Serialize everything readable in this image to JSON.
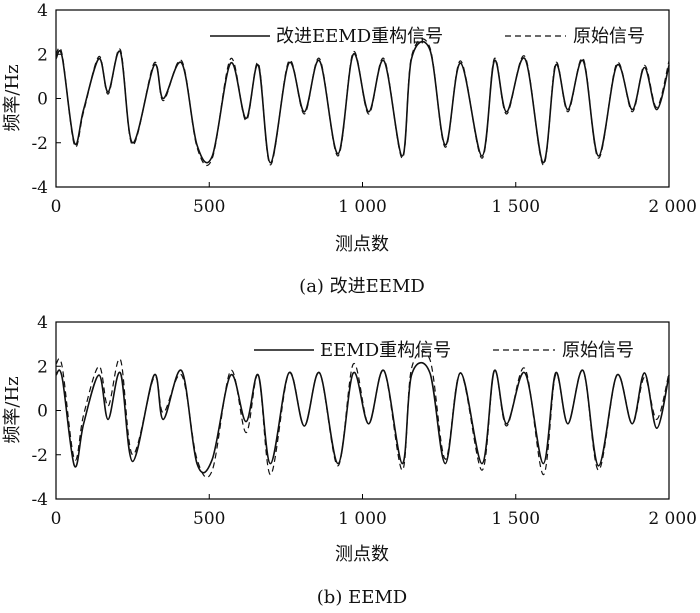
{
  "chart_data": [
    {
      "type": "line",
      "caption": "(a) 改进EEMD",
      "xlabel": "测点数",
      "ylabel": "频率/Hz",
      "xlim": [
        0,
        2000
      ],
      "ylim": [
        -4,
        4
      ],
      "x_ticks": [
        0,
        500,
        1000,
        1500,
        2000
      ],
      "x_tick_labels": [
        "0",
        "500",
        "1 000",
        "1 500",
        "2 000"
      ],
      "y_ticks": [
        4,
        2,
        0,
        -2,
        -4
      ],
      "y_tick_labels": [
        "4",
        "2",
        "0",
        "-2",
        "-4"
      ],
      "legend_position": "top-right",
      "grid": false,
      "series": [
        {
          "name": "改进EEMD重构信号",
          "style": "solid",
          "x": [
            0,
            20,
            60,
            90,
            140,
            170,
            210,
            250,
            320,
            350,
            410,
            460,
            510,
            570,
            620,
            660,
            700,
            760,
            810,
            860,
            920,
            970,
            1020,
            1070,
            1130,
            1160,
            1220,
            1270,
            1320,
            1390,
            1430,
            1470,
            1530,
            1590,
            1630,
            1670,
            1720,
            1770,
            1830,
            1880,
            1920,
            1960,
            2000
          ],
          "y": [
            1.8,
            1.9,
            -2.0,
            -0.5,
            1.8,
            0.3,
            2.1,
            -2.0,
            1.5,
            0.0,
            1.6,
            -2.1,
            -2.6,
            1.6,
            -0.9,
            1.5,
            -2.9,
            1.6,
            -0.6,
            1.7,
            -2.5,
            2.0,
            -0.6,
            1.7,
            -2.6,
            1.8,
            2.2,
            -2.1,
            1.6,
            -2.6,
            1.7,
            -0.6,
            1.8,
            -2.9,
            1.5,
            -0.5,
            1.7,
            -2.6,
            1.5,
            -0.5,
            1.4,
            -0.5,
            1.5
          ]
        },
        {
          "name": "原始信号",
          "style": "dashed",
          "x": [
            0,
            20,
            60,
            90,
            140,
            170,
            210,
            250,
            320,
            350,
            410,
            460,
            510,
            570,
            620,
            660,
            700,
            760,
            810,
            860,
            920,
            970,
            1020,
            1070,
            1130,
            1160,
            1220,
            1270,
            1320,
            1390,
            1430,
            1470,
            1530,
            1590,
            1630,
            1670,
            1720,
            1770,
            1830,
            1880,
            1920,
            1960,
            2000
          ],
          "y": [
            2.0,
            2.0,
            -2.1,
            -0.6,
            1.9,
            0.2,
            2.2,
            -2.1,
            1.6,
            -0.1,
            1.7,
            -2.2,
            -2.7,
            1.8,
            -1.0,
            1.6,
            -3.0,
            1.7,
            -0.7,
            1.8,
            -2.6,
            2.1,
            -0.7,
            1.8,
            -2.7,
            1.9,
            2.3,
            -2.2,
            1.7,
            -2.7,
            1.8,
            -0.7,
            1.9,
            -3.0,
            1.6,
            -0.6,
            1.8,
            -2.7,
            1.6,
            -0.6,
            1.5,
            -0.4,
            1.7
          ]
        }
      ]
    },
    {
      "type": "line",
      "caption": "(b) EEMD",
      "xlabel": "测点数",
      "ylabel": "频率/Hz",
      "xlim": [
        0,
        2000
      ],
      "ylim": [
        -4,
        4
      ],
      "x_ticks": [
        0,
        500,
        1000,
        1500,
        2000
      ],
      "x_tick_labels": [
        "0",
        "500",
        "1 000",
        "1 500",
        "2 000"
      ],
      "y_ticks": [
        4,
        2,
        0,
        -2,
        -4
      ],
      "y_tick_labels": [
        "4",
        "2",
        "0",
        "-2",
        "-4"
      ],
      "legend_position": "top-right",
      "grid": false,
      "series": [
        {
          "name": "EEMD重构信号",
          "style": "solid",
          "x": [
            0,
            20,
            60,
            90,
            140,
            170,
            210,
            250,
            320,
            350,
            410,
            460,
            510,
            570,
            620,
            660,
            700,
            760,
            810,
            860,
            920,
            970,
            1020,
            1070,
            1130,
            1160,
            1220,
            1270,
            1320,
            1390,
            1430,
            1470,
            1530,
            1590,
            1630,
            1670,
            1720,
            1770,
            1830,
            1880,
            1920,
            1960,
            2000
          ],
          "y": [
            1.6,
            1.5,
            -2.5,
            -0.6,
            1.6,
            -0.4,
            1.7,
            -2.3,
            1.6,
            -0.4,
            1.8,
            -2.4,
            -2.2,
            1.6,
            -0.5,
            1.6,
            -2.4,
            1.7,
            -0.7,
            1.7,
            -2.4,
            1.7,
            -0.6,
            1.8,
            -2.4,
            1.6,
            1.7,
            -2.4,
            1.7,
            -2.4,
            1.8,
            -0.6,
            1.7,
            -2.4,
            1.7,
            -0.6,
            1.8,
            -2.5,
            1.6,
            -0.6,
            1.7,
            -0.8,
            1.6
          ]
        },
        {
          "name": "原始信号",
          "style": "dashed",
          "x": [
            0,
            20,
            60,
            90,
            140,
            170,
            210,
            250,
            320,
            350,
            410,
            460,
            510,
            570,
            620,
            660,
            700,
            760,
            810,
            860,
            920,
            970,
            1020,
            1070,
            1130,
            1160,
            1220,
            1270,
            1320,
            1390,
            1430,
            1470,
            1530,
            1590,
            1630,
            1670,
            1720,
            1770,
            1830,
            1880,
            1920,
            1960,
            2000
          ],
          "y": [
            2.1,
            2.0,
            -2.2,
            -0.2,
            2.0,
            0.2,
            2.3,
            -2.0,
            1.5,
            -0.1,
            1.6,
            -2.2,
            -2.7,
            1.8,
            -1.0,
            1.6,
            -2.9,
            1.7,
            -0.7,
            1.7,
            -2.5,
            2.1,
            -0.6,
            1.8,
            -2.7,
            1.9,
            2.3,
            -2.2,
            1.7,
            -2.7,
            1.8,
            -0.7,
            1.9,
            -2.9,
            1.6,
            -0.6,
            1.8,
            -2.7,
            1.6,
            -0.6,
            1.5,
            -0.4,
            1.7
          ]
        }
      ]
    }
  ]
}
